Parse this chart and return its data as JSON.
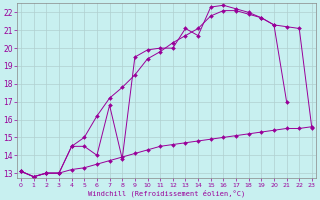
{
  "xlabel": "Windchill (Refroidissement éolien,°C)",
  "bg_color": "#c8f0f0",
  "grid_color": "#b0d0d0",
  "line_color": "#990099",
  "x_ticks": [
    0,
    1,
    2,
    3,
    4,
    5,
    6,
    7,
    8,
    9,
    10,
    11,
    12,
    13,
    14,
    15,
    16,
    17,
    18,
    19,
    20,
    21,
    22,
    23
  ],
  "y_ticks": [
    13,
    14,
    15,
    16,
    17,
    18,
    19,
    20,
    21,
    22
  ],
  "ylim": [
    12.7,
    22.5
  ],
  "xlim": [
    -0.3,
    23.3
  ],
  "line1_x": [
    0,
    1,
    2,
    3,
    4,
    5,
    6,
    7,
    8,
    9,
    10,
    11,
    12,
    13,
    14,
    15,
    16,
    17,
    18,
    19,
    20,
    21
  ],
  "line1_y": [
    13.1,
    12.8,
    13.0,
    13.0,
    14.5,
    14.5,
    14.0,
    16.8,
    13.8,
    19.5,
    19.9,
    20.0,
    20.0,
    21.1,
    20.7,
    22.3,
    22.4,
    22.2,
    22.0,
    21.7,
    21.3,
    17.0
  ],
  "line2_x": [
    0,
    1,
    2,
    3,
    4,
    5,
    6,
    7,
    8,
    9,
    10,
    11,
    12,
    13,
    14,
    15,
    16,
    17,
    18,
    19,
    20,
    21,
    22,
    23
  ],
  "line2_y": [
    13.1,
    12.8,
    13.0,
    13.0,
    14.5,
    15.0,
    16.2,
    17.2,
    17.8,
    18.5,
    19.4,
    19.8,
    20.3,
    20.7,
    21.1,
    21.8,
    22.1,
    22.1,
    21.9,
    21.7,
    21.3,
    21.2,
    21.1,
    15.5
  ],
  "line3_x": [
    0,
    1,
    2,
    3,
    4,
    5,
    6,
    7,
    8,
    9,
    10,
    11,
    12,
    13,
    14,
    15,
    16,
    17,
    18,
    19,
    20,
    21,
    22,
    23
  ],
  "line3_y": [
    13.1,
    12.8,
    13.0,
    13.0,
    13.2,
    13.3,
    13.5,
    13.7,
    13.9,
    14.1,
    14.3,
    14.5,
    14.6,
    14.7,
    14.8,
    14.9,
    15.0,
    15.1,
    15.2,
    15.3,
    15.4,
    15.5,
    15.5,
    15.6
  ]
}
